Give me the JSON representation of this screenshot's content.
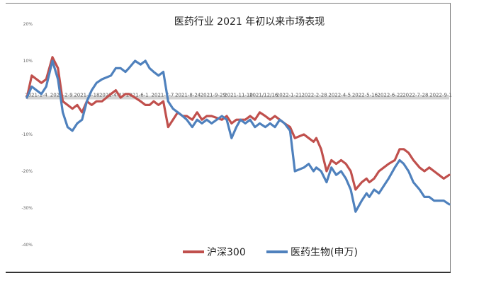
{
  "chart_data": {
    "type": "line",
    "title": "医药行业 2021 年初以来市场表现",
    "xlabel": "",
    "ylabel": "",
    "ylim": [
      -0.4,
      0.2
    ],
    "y_ticks": [
      "20%",
      "10%",
      "0%",
      "-10%",
      "-20%",
      "-30%",
      "-40%"
    ],
    "y_tick_values": [
      0.2,
      0.1,
      0.0,
      -0.1,
      -0.2,
      -0.3,
      -0.4
    ],
    "x_tick_labels": [
      "2021-1-4",
      "2021-2-9",
      "2021-3-18",
      "2021-4-23",
      "2021-6-1",
      "2021-7-7",
      "2021-8-24",
      "2021-9-29",
      "2021-11-10",
      "2021/12/16",
      "2022-1-21",
      "2022-2-28",
      "2022-4-5",
      "2022-5-16",
      "2022-6-22",
      "2022-7-28",
      "2022-9-1"
    ],
    "x_start": "2021-01-04",
    "x_end": "2022-09-09",
    "legend_position": "bottom",
    "grid": false,
    "series": [
      {
        "name": "沪深300",
        "color": "#c0504d",
        "points": [
          [
            "2021-01-04",
            0.0
          ],
          [
            "2021-01-11",
            0.06
          ],
          [
            "2021-01-18",
            0.05
          ],
          [
            "2021-01-25",
            0.04
          ],
          [
            "2021-02-01",
            0.05
          ],
          [
            "2021-02-10",
            0.11
          ],
          [
            "2021-02-18",
            0.08
          ],
          [
            "2021-02-25",
            -0.01
          ],
          [
            "2021-03-04",
            -0.02
          ],
          [
            "2021-03-11",
            -0.03
          ],
          [
            "2021-03-18",
            -0.02
          ],
          [
            "2021-03-25",
            -0.04
          ],
          [
            "2021-04-01",
            -0.01
          ],
          [
            "2021-04-08",
            -0.02
          ],
          [
            "2021-04-15",
            -0.01
          ],
          [
            "2021-04-23",
            -0.01
          ],
          [
            "2021-05-06",
            0.01
          ],
          [
            "2021-05-13",
            0.02
          ],
          [
            "2021-05-20",
            0.0
          ],
          [
            "2021-05-27",
            0.01
          ],
          [
            "2021-06-01",
            0.01
          ],
          [
            "2021-06-10",
            0.0
          ],
          [
            "2021-06-18",
            -0.01
          ],
          [
            "2021-06-25",
            -0.02
          ],
          [
            "2021-07-01",
            -0.02
          ],
          [
            "2021-07-07",
            -0.01
          ],
          [
            "2021-07-14",
            -0.02
          ],
          [
            "2021-07-21",
            -0.01
          ],
          [
            "2021-07-28",
            -0.08
          ],
          [
            "2021-08-04",
            -0.06
          ],
          [
            "2021-08-11",
            -0.04
          ],
          [
            "2021-08-18",
            -0.05
          ],
          [
            "2021-08-24",
            -0.05
          ],
          [
            "2021-09-01",
            -0.06
          ],
          [
            "2021-09-08",
            -0.04
          ],
          [
            "2021-09-15",
            -0.06
          ],
          [
            "2021-09-22",
            -0.05
          ],
          [
            "2021-09-29",
            -0.05
          ],
          [
            "2021-10-14",
            -0.06
          ],
          [
            "2021-10-21",
            -0.05
          ],
          [
            "2021-10-28",
            -0.07
          ],
          [
            "2021-11-04",
            -0.06
          ],
          [
            "2021-11-10",
            -0.06
          ],
          [
            "2021-11-17",
            -0.06
          ],
          [
            "2021-11-24",
            -0.05
          ],
          [
            "2021-12-01",
            -0.06
          ],
          [
            "2021-12-08",
            -0.04
          ],
          [
            "2021-12-16",
            -0.05
          ],
          [
            "2021-12-23",
            -0.06
          ],
          [
            "2021-12-30",
            -0.05
          ],
          [
            "2022-01-06",
            -0.06
          ],
          [
            "2022-01-13",
            -0.07
          ],
          [
            "2022-01-21",
            -0.08
          ],
          [
            "2022-01-28",
            -0.11
          ],
          [
            "2022-02-10",
            -0.1
          ],
          [
            "2022-02-17",
            -0.11
          ],
          [
            "2022-02-24",
            -0.12
          ],
          [
            "2022-02-28",
            -0.11
          ],
          [
            "2022-03-07",
            -0.14
          ],
          [
            "2022-03-15",
            -0.2
          ],
          [
            "2022-03-22",
            -0.17
          ],
          [
            "2022-03-29",
            -0.18
          ],
          [
            "2022-04-05",
            -0.17
          ],
          [
            "2022-04-12",
            -0.18
          ],
          [
            "2022-04-19",
            -0.2
          ],
          [
            "2022-04-26",
            -0.25
          ],
          [
            "2022-05-05",
            -0.23
          ],
          [
            "2022-05-12",
            -0.22
          ],
          [
            "2022-05-16",
            -0.23
          ],
          [
            "2022-05-23",
            -0.22
          ],
          [
            "2022-05-30",
            -0.2
          ],
          [
            "2022-06-06",
            -0.19
          ],
          [
            "2022-06-13",
            -0.18
          ],
          [
            "2022-06-22",
            -0.17
          ],
          [
            "2022-06-29",
            -0.14
          ],
          [
            "2022-07-05",
            -0.14
          ],
          [
            "2022-07-12",
            -0.15
          ],
          [
            "2022-07-19",
            -0.17
          ],
          [
            "2022-07-28",
            -0.19
          ],
          [
            "2022-08-04",
            -0.2
          ],
          [
            "2022-08-11",
            -0.19
          ],
          [
            "2022-08-18",
            -0.2
          ],
          [
            "2022-08-25",
            -0.21
          ],
          [
            "2022-09-01",
            -0.22
          ],
          [
            "2022-09-09",
            -0.21
          ]
        ]
      },
      {
        "name": "医药生物(申万)",
        "color": "#4f81bd",
        "points": [
          [
            "2021-01-04",
            0.0
          ],
          [
            "2021-01-11",
            0.03
          ],
          [
            "2021-01-18",
            0.02
          ],
          [
            "2021-01-25",
            0.01
          ],
          [
            "2021-02-01",
            0.03
          ],
          [
            "2021-02-10",
            0.1
          ],
          [
            "2021-02-18",
            0.05
          ],
          [
            "2021-02-25",
            -0.04
          ],
          [
            "2021-03-04",
            -0.08
          ],
          [
            "2021-03-11",
            -0.09
          ],
          [
            "2021-03-18",
            -0.07
          ],
          [
            "2021-03-25",
            -0.06
          ],
          [
            "2021-04-01",
            -0.01
          ],
          [
            "2021-04-08",
            0.02
          ],
          [
            "2021-04-15",
            0.04
          ],
          [
            "2021-04-23",
            0.05
          ],
          [
            "2021-05-06",
            0.06
          ],
          [
            "2021-05-13",
            0.08
          ],
          [
            "2021-05-20",
            0.08
          ],
          [
            "2021-05-27",
            0.07
          ],
          [
            "2021-06-01",
            0.08
          ],
          [
            "2021-06-10",
            0.1
          ],
          [
            "2021-06-18",
            0.09
          ],
          [
            "2021-06-25",
            0.1
          ],
          [
            "2021-07-01",
            0.08
          ],
          [
            "2021-07-07",
            0.07
          ],
          [
            "2021-07-14",
            0.06
          ],
          [
            "2021-07-21",
            0.07
          ],
          [
            "2021-07-28",
            -0.01
          ],
          [
            "2021-08-04",
            -0.03
          ],
          [
            "2021-08-11",
            -0.04
          ],
          [
            "2021-08-18",
            -0.05
          ],
          [
            "2021-08-24",
            -0.06
          ],
          [
            "2021-09-01",
            -0.08
          ],
          [
            "2021-09-08",
            -0.06
          ],
          [
            "2021-09-15",
            -0.07
          ],
          [
            "2021-09-22",
            -0.06
          ],
          [
            "2021-09-29",
            -0.07
          ],
          [
            "2021-10-14",
            -0.05
          ],
          [
            "2021-10-21",
            -0.06
          ],
          [
            "2021-10-28",
            -0.11
          ],
          [
            "2021-11-04",
            -0.08
          ],
          [
            "2021-11-10",
            -0.06
          ],
          [
            "2021-11-17",
            -0.07
          ],
          [
            "2021-11-24",
            -0.06
          ],
          [
            "2021-12-01",
            -0.08
          ],
          [
            "2021-12-08",
            -0.07
          ],
          [
            "2021-12-16",
            -0.08
          ],
          [
            "2021-12-23",
            -0.07
          ],
          [
            "2021-12-30",
            -0.08
          ],
          [
            "2022-01-06",
            -0.06
          ],
          [
            "2022-01-13",
            -0.07
          ],
          [
            "2022-01-21",
            -0.09
          ],
          [
            "2022-01-28",
            -0.2
          ],
          [
            "2022-02-10",
            -0.19
          ],
          [
            "2022-02-17",
            -0.18
          ],
          [
            "2022-02-24",
            -0.2
          ],
          [
            "2022-02-28",
            -0.19
          ],
          [
            "2022-03-07",
            -0.2
          ],
          [
            "2022-03-15",
            -0.23
          ],
          [
            "2022-03-22",
            -0.19
          ],
          [
            "2022-03-29",
            -0.21
          ],
          [
            "2022-04-05",
            -0.2
          ],
          [
            "2022-04-12",
            -0.22
          ],
          [
            "2022-04-19",
            -0.25
          ],
          [
            "2022-04-26",
            -0.31
          ],
          [
            "2022-05-05",
            -0.28
          ],
          [
            "2022-05-12",
            -0.26
          ],
          [
            "2022-05-16",
            -0.27
          ],
          [
            "2022-05-23",
            -0.25
          ],
          [
            "2022-05-30",
            -0.26
          ],
          [
            "2022-06-06",
            -0.24
          ],
          [
            "2022-06-13",
            -0.22
          ],
          [
            "2022-06-22",
            -0.19
          ],
          [
            "2022-06-29",
            -0.17
          ],
          [
            "2022-07-05",
            -0.18
          ],
          [
            "2022-07-12",
            -0.2
          ],
          [
            "2022-07-19",
            -0.23
          ],
          [
            "2022-07-28",
            -0.25
          ],
          [
            "2022-08-04",
            -0.27
          ],
          [
            "2022-08-11",
            -0.27
          ],
          [
            "2022-08-18",
            -0.28
          ],
          [
            "2022-08-25",
            -0.28
          ],
          [
            "2022-09-01",
            -0.28
          ],
          [
            "2022-09-09",
            -0.29
          ]
        ]
      }
    ]
  }
}
